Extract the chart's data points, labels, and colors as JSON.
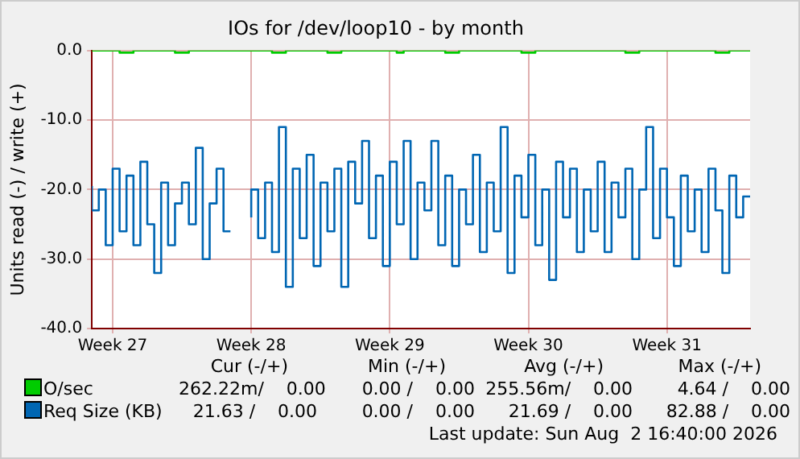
{
  "chart_data": {
    "type": "step",
    "title": "IOs for /dev/loop10 - by month",
    "ylabel": "Units read (-) / write (+)",
    "categories": [
      null,
      null,
      null,
      "Week 27",
      null,
      null,
      null,
      null,
      null,
      null,
      null,
      null,
      null,
      null,
      null,
      null,
      null,
      null,
      null,
      null,
      null,
      null,
      null,
      "Week 28",
      null,
      null,
      null,
      null,
      null,
      null,
      null,
      null,
      null,
      null,
      null,
      null,
      null,
      null,
      null,
      null,
      null,
      null,
      null,
      "Week 29",
      null,
      null,
      null,
      null,
      null,
      null,
      null,
      null,
      null,
      null,
      null,
      null,
      null,
      null,
      null,
      null,
      null,
      null,
      null,
      "Week 30",
      null,
      null,
      null,
      null,
      null,
      null,
      null,
      null,
      null,
      null,
      null,
      null,
      null,
      null,
      null,
      null,
      null,
      null,
      null,
      "Week 31",
      null,
      null,
      null,
      null,
      null,
      null,
      null,
      null,
      null,
      null,
      null,
      null
    ],
    "ylim": [
      -40,
      0
    ],
    "yticks": [
      {
        "value": -40,
        "label": "-40.0"
      },
      {
        "value": -30,
        "label": "-30.0"
      },
      {
        "value": -20,
        "label": "-20.0"
      },
      {
        "value": -10,
        "label": "-10.0"
      },
      {
        "value": 0,
        "label": "0.0"
      }
    ],
    "grid": true,
    "legend": "bottom",
    "series": [
      {
        "name": "O/sec",
        "color": "#00cc00",
        "values": [
          0,
          0,
          0,
          0,
          0,
          -0.3,
          -0.3,
          0,
          0,
          0,
          0,
          0,
          0,
          -0.3,
          -0.3,
          0,
          0,
          0,
          0,
          0,
          0,
          0,
          0,
          0,
          0,
          0,
          0,
          -0.3,
          -0.3,
          0,
          0,
          0,
          0,
          0,
          0,
          -0.3,
          -0.3,
          0,
          0,
          0,
          0,
          0,
          0,
          0,
          0,
          -0.3,
          0,
          0,
          0,
          0,
          0,
          0,
          -0.3,
          -0.3,
          0,
          0,
          0,
          0,
          0,
          0,
          0,
          0,
          0,
          -0.3,
          -0.3,
          0,
          0,
          0,
          0,
          0,
          0,
          0,
          0,
          0,
          0,
          0,
          0,
          0,
          -0.3,
          -0.3,
          0,
          0,
          0,
          0,
          0,
          0,
          0,
          0,
          0,
          0,
          0,
          -0.3,
          -0.3,
          0,
          0,
          0
        ]
      },
      {
        "name": "Req Size (KB)",
        "color": "#0066b3",
        "values": [
          -19.5,
          -23,
          -20,
          -28,
          -17,
          -26,
          -18,
          -28,
          -16,
          -25,
          -32,
          -19,
          -28,
          -22,
          -19,
          -25,
          -14,
          -30,
          -22,
          -17,
          -26,
          null,
          null,
          -24,
          -20,
          -27,
          -19,
          -29,
          -11,
          -34,
          -17,
          -27,
          -15,
          -31,
          -19,
          -26,
          -17,
          -34,
          -16,
          -22,
          -13,
          -27,
          -18,
          -31,
          -16,
          -25,
          -13,
          -30,
          -19,
          -23,
          -13,
          -28,
          -18,
          -31,
          -20,
          -25,
          -15,
          -29,
          -19,
          -26,
          -11,
          -32,
          -18,
          -24,
          -15,
          -28,
          -20,
          -33,
          -16,
          -24,
          -17,
          -29,
          -20,
          -26,
          -16,
          -29,
          -19,
          -24,
          -17,
          -30,
          -20,
          -11,
          -27,
          -17,
          -24,
          -31,
          -18,
          -26,
          -20,
          -29,
          -17,
          -23,
          -32,
          -18,
          -24,
          -21
        ]
      }
    ],
    "annotations": [
      "Cur (-/+)",
      "Min (-/+)",
      "Avg (-/+)",
      "Max (-/+)",
      "262.22m/    0.00",
      "0.00 /    0.00",
      "255.56m/    0.00",
      "4.64 /    0.00",
      "21.63 /    0.00",
      "0.00 /    0.00",
      "21.69 /    0.00",
      "82.88 /    0.00",
      "Last update: Sun Aug  2 16:40:00 2026"
    ]
  }
}
